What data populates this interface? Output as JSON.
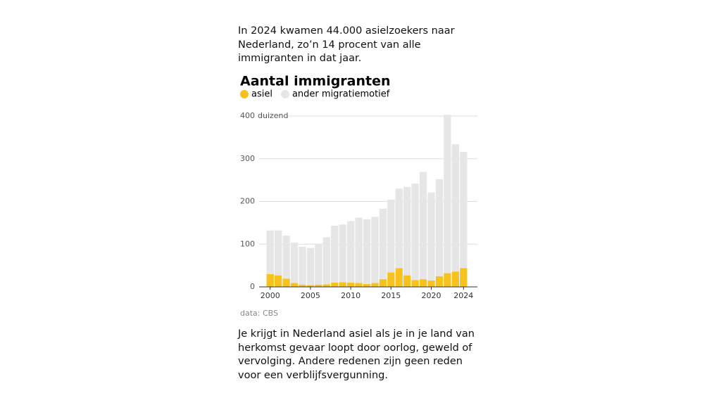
{
  "intro": "In 2024 kwamen 44.000 asielzoekers naar Nederland, zo’n 14 procent van alle immigranten in dat jaar.",
  "chart_data": {
    "type": "stacked_bar",
    "title": "Aantal immigranten",
    "x": [
      2000,
      2001,
      2002,
      2003,
      2004,
      2005,
      2006,
      2007,
      2008,
      2009,
      2010,
      2011,
      2012,
      2013,
      2014,
      2015,
      2016,
      2017,
      2018,
      2019,
      2020,
      2021,
      2022,
      2023,
      2024
    ],
    "xlim": [
      1999.5,
      2024.5
    ],
    "xticks": [
      2000,
      2005,
      2010,
      2015,
      2020,
      2024
    ],
    "series": [
      {
        "name": "asiel",
        "color": "#f7c21e",
        "values": [
          30,
          27,
          19,
          9,
          5,
          4,
          5,
          6,
          10,
          11,
          10,
          9,
          7,
          9,
          18,
          34,
          44,
          27,
          16,
          18,
          15,
          25,
          32,
          36,
          44
        ]
      },
      {
        "name": "ander migratiemotief",
        "color": "#e6e6e6",
        "values": [
          102,
          105,
          101,
          95,
          89,
          87,
          96,
          110,
          133,
          135,
          144,
          153,
          151,
          155,
          165,
          170,
          186,
          207,
          226,
          251,
          206,
          227,
          371,
          298,
          272
        ]
      }
    ],
    "ylim": [
      0,
      400
    ],
    "yticks": [
      0,
      100,
      200,
      300,
      400
    ],
    "y_unit": "duizend",
    "grid": true,
    "source": "data: CBS"
  },
  "outro": "Je krijgt in Nederland asiel als je in je land van herkomst gevaar loopt door oorlog, geweld of vervolging. Andere redenen zijn geen reden voor een verblijfsvergunning."
}
